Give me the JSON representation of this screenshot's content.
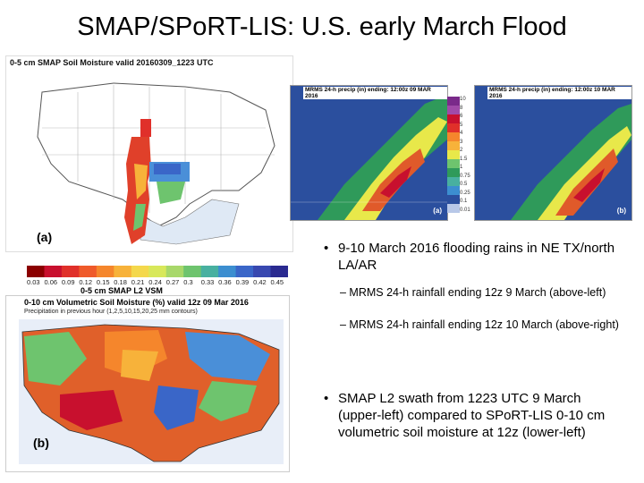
{
  "title": "SMAP/SPoRT-LIS: U.S. early March Flood",
  "panel_a": {
    "header": "0-5 cm SMAP Soil Moisture valid 20160309_1223 UTC",
    "tag": "(a)",
    "colorbar_ticks": [
      "0.03",
      "0.06",
      "0.09",
      "0.12",
      "0.15",
      "0.18",
      "0.21",
      "0.24",
      "0.27",
      "0.3",
      "0.33",
      "0.36",
      "0.39",
      "0.42",
      "0.45"
    ],
    "colorbar_colors": [
      "#8b0000",
      "#c8102e",
      "#e0302a",
      "#ef5a2a",
      "#f5862c",
      "#f7b23a",
      "#f4d84c",
      "#d8e85a",
      "#a8d86a",
      "#6ec46e",
      "#48b0a0",
      "#3c8ed0",
      "#3a66c8",
      "#3848b0",
      "#2a2a90"
    ],
    "subtitle": "0-5 cm SMAP L2 VSM"
  },
  "panel_b": {
    "header": "0-10 cm Volumetric Soil Moisture (%) valid 12z 09 Mar 2016",
    "header2": "Precipitation in previous hour (1,2,5,10,15,20,25 mm contours)",
    "tag": "(b)"
  },
  "mrms_a": {
    "header": "MRMS 24-h precip (in) ending: 12:00z 09 MAR 2016",
    "tag": "(a)"
  },
  "mrms_b": {
    "header": "MRMS 24-h precip (in) ending: 12:00z 10 MAR 2016",
    "tag": "(b)"
  },
  "mrms_scale": [
    "10",
    "8",
    "6",
    "5",
    "4",
    "3",
    "2",
    "1.5",
    "1",
    "0.75",
    "0.5",
    "0.25",
    "0.1",
    "0.01"
  ],
  "bullets": [
    {
      "text": "9-10 March 2016 flooding rains in NE TX/north LA/AR",
      "subs": [
        "– MRMS 24-h rainfall ending 12z 9 March (above-left)",
        "– MRMS 24-h rainfall ending 12z 10 March (above-right)"
      ]
    },
    {
      "text": "SMAP L2 swath from 1223 UTC 9 March (upper-left) compared to SPoRT-LIS 0-10 cm volumetric soil moisture at 12z (lower-left)"
    }
  ]
}
